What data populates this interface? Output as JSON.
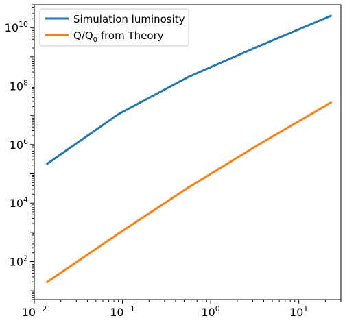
{
  "chart_data": {
    "type": "line",
    "x_scale": "log",
    "y_scale": "log",
    "xlim": [
      0.01,
      30
    ],
    "ylim": [
      5,
      60000000000
    ],
    "grid": false,
    "legend_position": "top-left",
    "x_ticks": [
      {
        "value": 0.01,
        "base": "10",
        "exp": "−2"
      },
      {
        "value": 0.1,
        "base": "10",
        "exp": "−1"
      },
      {
        "value": 1,
        "base": "10",
        "exp": "0"
      },
      {
        "value": 10,
        "base": "10",
        "exp": "1"
      }
    ],
    "y_ticks": [
      {
        "value": 100,
        "base": "10",
        "exp": "2"
      },
      {
        "value": 10000,
        "base": "10",
        "exp": "4"
      },
      {
        "value": 1000000,
        "base": "10",
        "exp": "6"
      },
      {
        "value": 100000000,
        "base": "10",
        "exp": "8"
      },
      {
        "value": 10000000000,
        "base": "10",
        "exp": "10"
      }
    ],
    "series": [
      {
        "legend_main": "Simulation luminosity",
        "legend_sub": "",
        "legend_tail": "",
        "color": "#1f77b4",
        "x": [
          0.014,
          0.09,
          0.55,
          3.5,
          23
        ],
        "y": [
          220000,
          11000000,
          200000000,
          2300000000,
          25000000000
        ]
      },
      {
        "legend_main": "Q/Q",
        "legend_sub": "0",
        "legend_tail": " from Theory",
        "color": "#ff7f0e",
        "x": [
          0.014,
          0.09,
          0.55,
          3.5,
          23
        ],
        "y": [
          20,
          900,
          33000,
          1000000,
          27000000
        ]
      }
    ]
  }
}
